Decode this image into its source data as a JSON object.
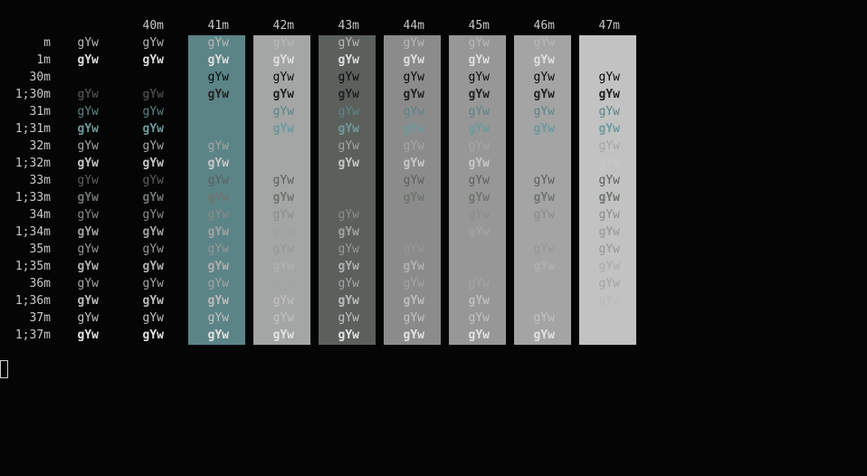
{
  "terminal": {
    "background": "#050505",
    "sample_text": "gYw",
    "header_labels": [
      "40m",
      "41m",
      "42m",
      "43m",
      "44m",
      "45m",
      "46m",
      "47m"
    ],
    "column_backgrounds": [
      "#5b8487",
      "#a3a6a4",
      "#5c605d",
      "#8b8b8b",
      "#979797",
      "#a4a4a4",
      "#c2c2c2"
    ],
    "rows": [
      {
        "label": "m",
        "cells": [
          {
            "t": "gYw",
            "c": "#b8b8b8"
          },
          {
            "t": "gYw",
            "c": "#b8b8b8"
          },
          {
            "t": "gYw",
            "c": "#b8b8b8"
          },
          {
            "t": "gYw",
            "c": "#b8b8b8"
          },
          {
            "t": "gYw",
            "c": "#b8b8b8"
          },
          {
            "t": "gYw",
            "c": "#b8b8b8"
          },
          {
            "t": "gYw",
            "c": "#b8b8b8"
          },
          {
            "t": "gYw",
            "c": "#b8b8b8"
          },
          {
            "t": "",
            "c": ""
          }
        ]
      },
      {
        "label": "1m",
        "cells": [
          {
            "t": "gYw",
            "c": "#dedede",
            "b": 1
          },
          {
            "t": "gYw",
            "c": "#dedede",
            "b": 1
          },
          {
            "t": "gYw",
            "c": "#dedede",
            "b": 1
          },
          {
            "t": "gYw",
            "c": "#dedede",
            "b": 1
          },
          {
            "t": "gYw",
            "c": "#dedede",
            "b": 1
          },
          {
            "t": "gYw",
            "c": "#dedede",
            "b": 1
          },
          {
            "t": "gYw",
            "c": "#dedede",
            "b": 1
          },
          {
            "t": "gYw",
            "c": "#dedede",
            "b": 1
          },
          {
            "t": "",
            "c": ""
          }
        ]
      },
      {
        "label": "30m",
        "cells": [
          {
            "t": "",
            "c": ""
          },
          {
            "t": "",
            "c": ""
          },
          {
            "t": "gYw",
            "c": "#0a0a0a"
          },
          {
            "t": "gYw",
            "c": "#0a0a0a"
          },
          {
            "t": "gYw",
            "c": "#0a0a0a"
          },
          {
            "t": "gYw",
            "c": "#0a0a0a"
          },
          {
            "t": "gYw",
            "c": "#0a0a0a"
          },
          {
            "t": "gYw",
            "c": "#0a0a0a"
          },
          {
            "t": "gYw",
            "c": "#0a0a0a"
          }
        ]
      },
      {
        "label": "1;30m",
        "cells": [
          {
            "t": "gYw",
            "c": "#444444",
            "b": 1
          },
          {
            "t": "gYw",
            "c": "#444444",
            "b": 1
          },
          {
            "t": "gYw",
            "c": "#222222",
            "b": 1
          },
          {
            "t": "gYw",
            "c": "#222222",
            "b": 1
          },
          {
            "t": "gYw",
            "c": "#222222",
            "b": 1
          },
          {
            "t": "gYw",
            "c": "#222222",
            "b": 1
          },
          {
            "t": "gYw",
            "c": "#222222",
            "b": 1
          },
          {
            "t": "gYw",
            "c": "#222222",
            "b": 1
          },
          {
            "t": "gYw",
            "c": "#222222",
            "b": 1
          }
        ]
      },
      {
        "label": "31m",
        "cells": [
          {
            "t": "gYw",
            "c": "#5b8487"
          },
          {
            "t": "gYw",
            "c": "#5b8487"
          },
          {
            "t": "",
            "c": ""
          },
          {
            "t": "gYw",
            "c": "#5b8487"
          },
          {
            "t": "gYw",
            "c": "#5b8487"
          },
          {
            "t": "gYw",
            "c": "#5b8487"
          },
          {
            "t": "gYw",
            "c": "#5b8487"
          },
          {
            "t": "gYw",
            "c": "#5b8487"
          },
          {
            "t": "gYw",
            "c": "#5b8487"
          }
        ]
      },
      {
        "label": "1;31m",
        "cells": [
          {
            "t": "gYw",
            "c": "#6d9a9d",
            "b": 1
          },
          {
            "t": "gYw",
            "c": "#6d9a9d",
            "b": 1
          },
          {
            "t": "",
            "c": ""
          },
          {
            "t": "gYw",
            "c": "#6d9a9d",
            "b": 1
          },
          {
            "t": "gYw",
            "c": "#6d9a9d",
            "b": 1
          },
          {
            "t": "gYw",
            "c": "#6d9a9d",
            "b": 1
          },
          {
            "t": "gYw",
            "c": "#6d9a9d",
            "b": 1
          },
          {
            "t": "gYw",
            "c": "#6d9a9d",
            "b": 1
          },
          {
            "t": "gYw",
            "c": "#6d9a9d",
            "b": 1
          }
        ]
      },
      {
        "label": "32m",
        "cells": [
          {
            "t": "gYw",
            "c": "#a3a6a4"
          },
          {
            "t": "gYw",
            "c": "#a3a6a4"
          },
          {
            "t": "gYw",
            "c": "#a3a6a4"
          },
          {
            "t": "",
            "c": ""
          },
          {
            "t": "gYw",
            "c": "#a3a6a4"
          },
          {
            "t": "gYw",
            "c": "#a3a6a4"
          },
          {
            "t": "gYw",
            "c": "#a3a6a4"
          },
          {
            "t": "",
            "c": ""
          },
          {
            "t": "gYw",
            "c": "#a3a6a4"
          }
        ]
      },
      {
        "label": "1;32m",
        "cells": [
          {
            "t": "gYw",
            "c": "#c6c8c6",
            "b": 1
          },
          {
            "t": "gYw",
            "c": "#c6c8c6",
            "b": 1
          },
          {
            "t": "gYw",
            "c": "#c6c8c6",
            "b": 1
          },
          {
            "t": "",
            "c": ""
          },
          {
            "t": "gYw",
            "c": "#c6c8c6",
            "b": 1
          },
          {
            "t": "gYw",
            "c": "#c6c8c6",
            "b": 1
          },
          {
            "t": "gYw",
            "c": "#c6c8c6",
            "b": 1
          },
          {
            "t": "",
            "c": ""
          },
          {
            "t": "gYw",
            "c": "#c6c8c6",
            "b": 1
          }
        ]
      },
      {
        "label": "33m",
        "cells": [
          {
            "t": "gYw",
            "c": "#5c605d"
          },
          {
            "t": "gYw",
            "c": "#5c605d"
          },
          {
            "t": "gYw",
            "c": "#5c605d"
          },
          {
            "t": "gYw",
            "c": "#5c605d"
          },
          {
            "t": "",
            "c": ""
          },
          {
            "t": "gYw",
            "c": "#5c605d"
          },
          {
            "t": "gYw",
            "c": "#5c605d"
          },
          {
            "t": "gYw",
            "c": "#5c605d"
          },
          {
            "t": "gYw",
            "c": "#5c605d"
          }
        ]
      },
      {
        "label": "1;33m",
        "cells": [
          {
            "t": "gYw",
            "c": "#707570",
            "b": 1
          },
          {
            "t": "gYw",
            "c": "#707570",
            "b": 1
          },
          {
            "t": "gYw",
            "c": "#707570",
            "b": 1
          },
          {
            "t": "gYw",
            "c": "#707570",
            "b": 1
          },
          {
            "t": "",
            "c": ""
          },
          {
            "t": "gYw",
            "c": "#707570",
            "b": 1
          },
          {
            "t": "gYw",
            "c": "#707570",
            "b": 1
          },
          {
            "t": "gYw",
            "c": "#707570",
            "b": 1
          },
          {
            "t": "gYw",
            "c": "#707570",
            "b": 1
          }
        ]
      },
      {
        "label": "34m",
        "cells": [
          {
            "t": "gYw",
            "c": "#8b8b8b"
          },
          {
            "t": "gYw",
            "c": "#8b8b8b"
          },
          {
            "t": "gYw",
            "c": "#8b8b8b"
          },
          {
            "t": "gYw",
            "c": "#8b8b8b"
          },
          {
            "t": "gYw",
            "c": "#8b8b8b"
          },
          {
            "t": "",
            "c": ""
          },
          {
            "t": "gYw",
            "c": "#8b8b8b"
          },
          {
            "t": "gYw",
            "c": "#8b8b8b"
          },
          {
            "t": "gYw",
            "c": "#8b8b8b"
          }
        ]
      },
      {
        "label": "1;34m",
        "cells": [
          {
            "t": "gYw",
            "c": "#a2a2a2",
            "b": 1
          },
          {
            "t": "gYw",
            "c": "#a2a2a2",
            "b": 1
          },
          {
            "t": "gYw",
            "c": "#a2a2a2",
            "b": 1
          },
          {
            "t": "gYw",
            "c": "#a2a2a2",
            "b": 1
          },
          {
            "t": "gYw",
            "c": "#a2a2a2",
            "b": 1
          },
          {
            "t": "",
            "c": ""
          },
          {
            "t": "gYw",
            "c": "#a2a2a2",
            "b": 1
          },
          {
            "t": "gYw",
            "c": "#a2a2a2",
            "b": 1
          },
          {
            "t": "gYw",
            "c": "#a2a2a2",
            "b": 1
          }
        ]
      },
      {
        "label": "35m",
        "cells": [
          {
            "t": "gYw",
            "c": "#979797"
          },
          {
            "t": "gYw",
            "c": "#979797"
          },
          {
            "t": "gYw",
            "c": "#979797"
          },
          {
            "t": "gYw",
            "c": "#979797"
          },
          {
            "t": "gYw",
            "c": "#979797"
          },
          {
            "t": "gYw",
            "c": "#979797"
          },
          {
            "t": "",
            "c": ""
          },
          {
            "t": "gYw",
            "c": "#979797"
          },
          {
            "t": "gYw",
            "c": "#979797"
          }
        ]
      },
      {
        "label": "1;35m",
        "cells": [
          {
            "t": "gYw",
            "c": "#b0b0b0",
            "b": 1
          },
          {
            "t": "gYw",
            "c": "#b0b0b0",
            "b": 1
          },
          {
            "t": "gYw",
            "c": "#b0b0b0",
            "b": 1
          },
          {
            "t": "gYw",
            "c": "#b0b0b0",
            "b": 1
          },
          {
            "t": "gYw",
            "c": "#b0b0b0",
            "b": 1
          },
          {
            "t": "gYw",
            "c": "#b0b0b0",
            "b": 1
          },
          {
            "t": "",
            "c": ""
          },
          {
            "t": "gYw",
            "c": "#b0b0b0",
            "b": 1
          },
          {
            "t": "gYw",
            "c": "#b0b0b0",
            "b": 1
          }
        ]
      },
      {
        "label": "36m",
        "cells": [
          {
            "t": "gYw",
            "c": "#a4a4a4"
          },
          {
            "t": "gYw",
            "c": "#a4a4a4"
          },
          {
            "t": "gYw",
            "c": "#a4a4a4"
          },
          {
            "t": "gYw",
            "c": "#a4a4a4"
          },
          {
            "t": "gYw",
            "c": "#a4a4a4"
          },
          {
            "t": "gYw",
            "c": "#a4a4a4"
          },
          {
            "t": "gYw",
            "c": "#a4a4a4"
          },
          {
            "t": "",
            "c": ""
          },
          {
            "t": "gYw",
            "c": "#a4a4a4"
          }
        ]
      },
      {
        "label": "1;36m",
        "cells": [
          {
            "t": "gYw",
            "c": "#bcbcbc",
            "b": 1
          },
          {
            "t": "gYw",
            "c": "#bcbcbc",
            "b": 1
          },
          {
            "t": "gYw",
            "c": "#bcbcbc",
            "b": 1
          },
          {
            "t": "gYw",
            "c": "#bcbcbc",
            "b": 1
          },
          {
            "t": "gYw",
            "c": "#bcbcbc",
            "b": 1
          },
          {
            "t": "gYw",
            "c": "#bcbcbc",
            "b": 1
          },
          {
            "t": "gYw",
            "c": "#bcbcbc",
            "b": 1
          },
          {
            "t": "",
            "c": ""
          },
          {
            "t": "gYw",
            "c": "#bcbcbc",
            "b": 1
          }
        ]
      },
      {
        "label": "37m",
        "cells": [
          {
            "t": "gYw",
            "c": "#c2c2c2"
          },
          {
            "t": "gYw",
            "c": "#c2c2c2"
          },
          {
            "t": "gYw",
            "c": "#c2c2c2"
          },
          {
            "t": "gYw",
            "c": "#c2c2c2"
          },
          {
            "t": "gYw",
            "c": "#c2c2c2"
          },
          {
            "t": "gYw",
            "c": "#c2c2c2"
          },
          {
            "t": "gYw",
            "c": "#c2c2c2"
          },
          {
            "t": "gYw",
            "c": "#c2c2c2"
          },
          {
            "t": "",
            "c": ""
          }
        ]
      },
      {
        "label": "1;37m",
        "cells": [
          {
            "t": "gYw",
            "c": "#e2e2e2",
            "b": 1
          },
          {
            "t": "gYw",
            "c": "#e2e2e2",
            "b": 1
          },
          {
            "t": "gYw",
            "c": "#e2e2e2",
            "b": 1
          },
          {
            "t": "gYw",
            "c": "#e2e2e2",
            "b": 1
          },
          {
            "t": "gYw",
            "c": "#e2e2e2",
            "b": 1
          },
          {
            "t": "gYw",
            "c": "#e2e2e2",
            "b": 1
          },
          {
            "t": "gYw",
            "c": "#e2e2e2",
            "b": 1
          },
          {
            "t": "gYw",
            "c": "#e2e2e2",
            "b": 1
          },
          {
            "t": "",
            "c": ""
          }
        ]
      }
    ],
    "cursor_color": "#d0d0d0"
  }
}
